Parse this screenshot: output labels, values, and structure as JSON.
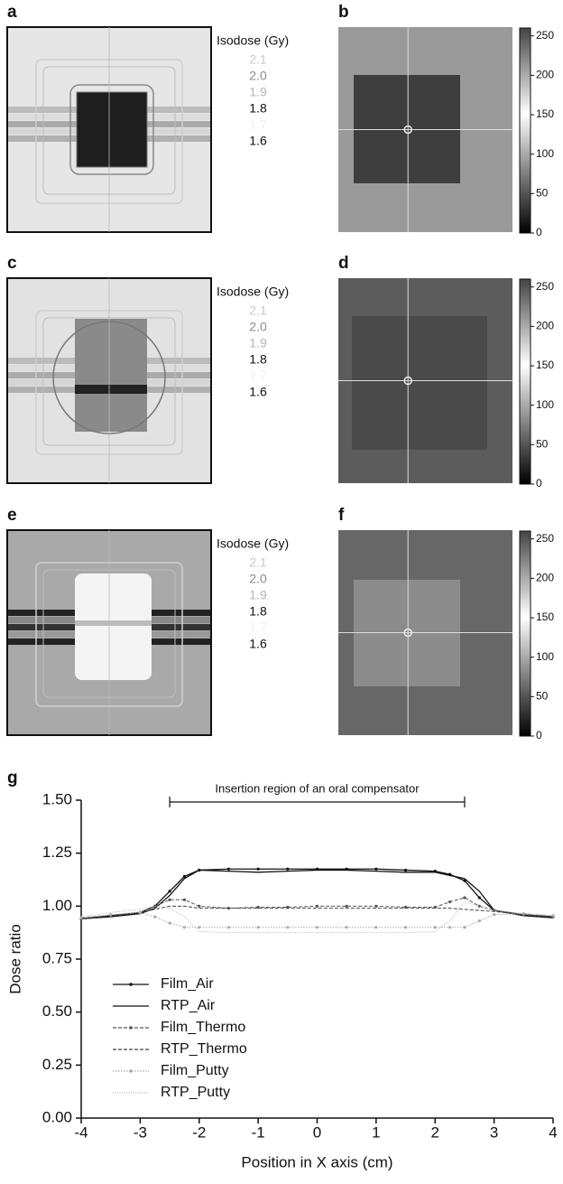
{
  "panels": [
    {
      "label": "a",
      "isodose_title": "Isodose (Gy)",
      "isodose_levels": [
        {
          "label": "2.1",
          "color": "#c8c8c8"
        },
        {
          "label": "2.0",
          "color": "#8c8c8c"
        },
        {
          "label": "1.9",
          "color": "#b4b4b4"
        },
        {
          "label": "1.8",
          "color": "#111111"
        },
        {
          "label": "1.7",
          "color": "#f0f0f0"
        },
        {
          "label": "1.6",
          "color": "#111111"
        }
      ]
    },
    {
      "label": "b",
      "colorbar": {
        "lim": [
          0,
          260
        ],
        "ticks": [
          0,
          50,
          100,
          150,
          200,
          250
        ]
      }
    },
    {
      "label": "c",
      "isodose_title": "Isodose (Gy)",
      "isodose_levels": [
        {
          "label": "2.1",
          "color": "#c8c8c8"
        },
        {
          "label": "2.0",
          "color": "#8c8c8c"
        },
        {
          "label": "1.9",
          "color": "#b4b4b4"
        },
        {
          "label": "1.8",
          "color": "#111111"
        },
        {
          "label": "1.7",
          "color": "#f0f0f0"
        },
        {
          "label": "1.6",
          "color": "#111111"
        }
      ]
    },
    {
      "label": "d",
      "colorbar": {
        "lim": [
          0,
          260
        ],
        "ticks": [
          0,
          50,
          100,
          150,
          200,
          250
        ]
      }
    },
    {
      "label": "e",
      "isodose_title": "Isodose (Gy)",
      "isodose_levels": [
        {
          "label": "2.1",
          "color": "#c8c8c8"
        },
        {
          "label": "2.0",
          "color": "#8c8c8c"
        },
        {
          "label": "1.9",
          "color": "#b4b4b4"
        },
        {
          "label": "1.8",
          "color": "#111111"
        },
        {
          "label": "1.7",
          "color": "#f0f0f0"
        },
        {
          "label": "1.6",
          "color": "#111111"
        }
      ]
    },
    {
      "label": "f",
      "colorbar": {
        "lim": [
          0,
          260
        ],
        "ticks": [
          0,
          50,
          100,
          150,
          200,
          250
        ]
      }
    }
  ],
  "chart_data": {
    "type": "line",
    "panel_label": "g",
    "x_label": "Position in X axis (cm)",
    "y_label": "Dose ratio",
    "annotation": {
      "text": "Insertion region of an oral compensator",
      "x": [
        -2.5,
        2.5
      ]
    },
    "x": [
      -4,
      -3.5,
      -3,
      -2.75,
      -2.5,
      -2.25,
      -2,
      -1.5,
      -1,
      -0.5,
      0,
      0.5,
      1,
      1.5,
      2,
      2.25,
      2.5,
      2.75,
      3,
      3.5,
      4
    ],
    "series": [
      {
        "name": "Film_Air",
        "color": "#111111",
        "values": [
          0.94,
          0.955,
          0.97,
          1.0,
          1.07,
          1.14,
          1.17,
          1.175,
          1.175,
          1.175,
          1.175,
          1.175,
          1.175,
          1.17,
          1.165,
          1.15,
          1.12,
          1.04,
          0.98,
          0.96,
          0.95
        ]
      },
      {
        "name": "RTP_Air",
        "color": "#111111",
        "values": [
          0.94,
          0.95,
          0.965,
          0.99,
          1.05,
          1.13,
          1.17,
          1.165,
          1.16,
          1.165,
          1.17,
          1.17,
          1.165,
          1.16,
          1.16,
          1.145,
          1.13,
          1.07,
          0.98,
          0.955,
          0.945
        ]
      },
      {
        "name": "Film_Thermo",
        "color": "#555555",
        "values": [
          0.94,
          0.955,
          0.97,
          1.0,
          1.03,
          1.03,
          1.0,
          0.99,
          0.995,
          0.995,
          1.0,
          1.0,
          1.0,
          0.995,
          0.995,
          1.02,
          1.04,
          1.0,
          0.98,
          0.96,
          0.95
        ]
      },
      {
        "name": "RTP_Thermo",
        "color": "#444444",
        "values": [
          0.945,
          0.955,
          0.97,
          0.985,
          1.0,
          1.0,
          0.99,
          0.99,
          0.99,
          0.99,
          0.99,
          0.99,
          0.99,
          0.99,
          0.99,
          0.99,
          0.985,
          0.98,
          0.975,
          0.96,
          0.95
        ]
      },
      {
        "name": "Film_Putty",
        "color": "#aaaaaa",
        "values": [
          0.945,
          0.96,
          0.97,
          0.95,
          0.92,
          0.9,
          0.9,
          0.9,
          0.9,
          0.9,
          0.9,
          0.9,
          0.9,
          0.9,
          0.9,
          0.9,
          0.9,
          0.93,
          0.96,
          0.965,
          0.955
        ]
      },
      {
        "name": "RTP_Putty",
        "color": "#b4b4b4",
        "values": [
          0.95,
          0.97,
          0.985,
          1.0,
          0.99,
          0.95,
          0.88,
          0.875,
          0.875,
          0.875,
          0.875,
          0.875,
          0.875,
          0.875,
          0.88,
          0.93,
          1.02,
          1.0,
          0.98,
          0.965,
          0.955
        ]
      }
    ],
    "xlim": [
      -4,
      4
    ],
    "xticks": [
      -4,
      -3,
      -2,
      -1,
      0,
      1,
      2,
      3,
      4
    ],
    "ylim": [
      0,
      1.5
    ],
    "yticks": [
      {
        "value": 0,
        "label": "0.00"
      },
      {
        "value": 0.25,
        "label": "0.25"
      },
      {
        "value": 0.5,
        "label": "0.50"
      },
      {
        "value": 0.75,
        "label": "0.75"
      },
      {
        "value": 1,
        "label": "1.00"
      },
      {
        "value": 1.25,
        "label": "1.25"
      },
      {
        "value": 1.5,
        "label": "1.50"
      }
    ]
  }
}
